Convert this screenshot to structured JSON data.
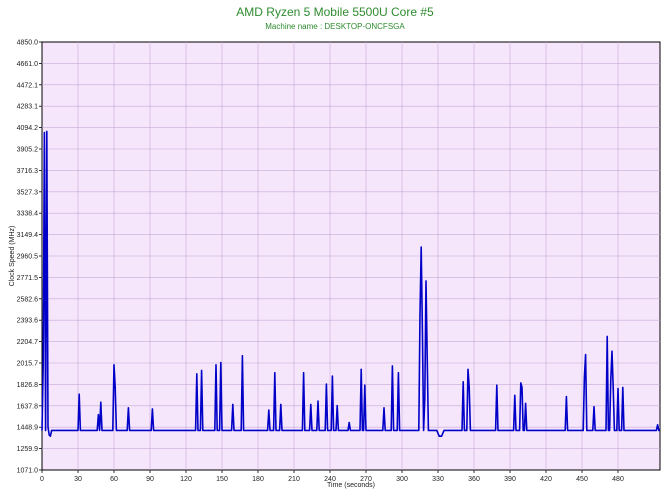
{
  "chart_data": {
    "type": "line",
    "title": "AMD Ryzen 5 Mobile 5500U Core #5",
    "subtitle": "Machine name : DESKTOP-ONCFSGA",
    "xlabel": "Time (seconds)",
    "ylabel": "Clock Speed (MHz)",
    "xlim": [
      0,
      515
    ],
    "ylim": [
      1071.0,
      4850.0
    ],
    "x_ticks": [
      "0",
      "30",
      "60",
      "90",
      "120",
      "150",
      "180",
      "210",
      "240",
      "270",
      "300",
      "330",
      "360",
      "390",
      "420",
      "450",
      "480"
    ],
    "y_ticks": [
      "1071.0",
      "1259.9",
      "1448.9",
      "1637.8",
      "1826.8",
      "2015.7",
      "2204.7",
      "2393.6",
      "2582.6",
      "2771.5",
      "2960.5",
      "3149.4",
      "3338.4",
      "3527.3",
      "3716.3",
      "3905.2",
      "4094.2",
      "4283.1",
      "4472.1",
      "4661.0",
      "4850.0"
    ],
    "grid": true,
    "background_color": "#f5e6fb",
    "grid_color": "#c8a8d8",
    "line_color": "#0000c8",
    "title_color": "#2e8b2e",
    "series": [
      {
        "values": [
          [
            0,
            1420
          ],
          [
            1,
            2000
          ],
          [
            2,
            4050
          ],
          [
            3,
            1420
          ],
          [
            4,
            4060
          ],
          [
            5,
            1450
          ],
          [
            6,
            1380
          ],
          [
            7,
            1370
          ],
          [
            8,
            1420
          ],
          [
            30,
            1420
          ],
          [
            31,
            1740
          ],
          [
            32,
            1420
          ],
          [
            46,
            1420
          ],
          [
            47,
            1560
          ],
          [
            48,
            1420
          ],
          [
            49,
            1670
          ],
          [
            50,
            1420
          ],
          [
            59,
            1420
          ],
          [
            60,
            2000
          ],
          [
            61,
            1800
          ],
          [
            62,
            1420
          ],
          [
            71,
            1420
          ],
          [
            72,
            1620
          ],
          [
            73,
            1420
          ],
          [
            91,
            1420
          ],
          [
            92,
            1610
          ],
          [
            93,
            1420
          ],
          [
            128,
            1420
          ],
          [
            129,
            1920
          ],
          [
            130,
            1420
          ],
          [
            132,
            1420
          ],
          [
            133,
            1950
          ],
          [
            134,
            1420
          ],
          [
            144,
            1420
          ],
          [
            145,
            2000
          ],
          [
            146,
            1420
          ],
          [
            148,
            1420
          ],
          [
            149,
            2020
          ],
          [
            150,
            1420
          ],
          [
            158,
            1420
          ],
          [
            159,
            1650
          ],
          [
            160,
            1420
          ],
          [
            166,
            1420
          ],
          [
            167,
            2080
          ],
          [
            168,
            1420
          ],
          [
            188,
            1420
          ],
          [
            189,
            1600
          ],
          [
            190,
            1420
          ],
          [
            193,
            1420
          ],
          [
            194,
            1930
          ],
          [
            195,
            1420
          ],
          [
            198,
            1420
          ],
          [
            199,
            1650
          ],
          [
            200,
            1420
          ],
          [
            217,
            1420
          ],
          [
            218,
            1930
          ],
          [
            219,
            1420
          ],
          [
            223,
            1420
          ],
          [
            224,
            1650
          ],
          [
            225,
            1420
          ],
          [
            229,
            1420
          ],
          [
            230,
            1680
          ],
          [
            231,
            1420
          ],
          [
            236,
            1420
          ],
          [
            237,
            1830
          ],
          [
            238,
            1420
          ],
          [
            241,
            1420
          ],
          [
            242,
            1900
          ],
          [
            243,
            1420
          ],
          [
            245,
            1420
          ],
          [
            246,
            1640
          ],
          [
            247,
            1420
          ],
          [
            255,
            1420
          ],
          [
            256,
            1490
          ],
          [
            257,
            1420
          ],
          [
            265,
            1420
          ],
          [
            266,
            1960
          ],
          [
            267,
            1420
          ],
          [
            268,
            1420
          ],
          [
            269,
            1820
          ],
          [
            270,
            1420
          ],
          [
            284,
            1420
          ],
          [
            285,
            1620
          ],
          [
            286,
            1420
          ],
          [
            291,
            1420
          ],
          [
            292,
            1990
          ],
          [
            293,
            1420
          ],
          [
            296,
            1420
          ],
          [
            297,
            1930
          ],
          [
            298,
            1420
          ],
          [
            314,
            1420
          ],
          [
            315,
            2450
          ],
          [
            316,
            3040
          ],
          [
            317,
            2300
          ],
          [
            318,
            1420
          ],
          [
            319,
            1700
          ],
          [
            320,
            2740
          ],
          [
            321,
            2070
          ],
          [
            322,
            1420
          ],
          [
            329,
            1420
          ],
          [
            331,
            1370
          ],
          [
            333,
            1370
          ],
          [
            335,
            1420
          ],
          [
            350,
            1420
          ],
          [
            351,
            1850
          ],
          [
            352,
            1420
          ],
          [
            354,
            1420
          ],
          [
            355,
            1960
          ],
          [
            356,
            1800
          ],
          [
            357,
            1420
          ],
          [
            378,
            1420
          ],
          [
            379,
            1820
          ],
          [
            380,
            1420
          ],
          [
            393,
            1420
          ],
          [
            394,
            1730
          ],
          [
            395,
            1420
          ],
          [
            398,
            1420
          ],
          [
            399,
            1840
          ],
          [
            400,
            1800
          ],
          [
            401,
            1420
          ],
          [
            402,
            1420
          ],
          [
            403,
            1660
          ],
          [
            404,
            1420
          ],
          [
            436,
            1420
          ],
          [
            437,
            1720
          ],
          [
            438,
            1420
          ],
          [
            451,
            1420
          ],
          [
            452,
            1890
          ],
          [
            453,
            2090
          ],
          [
            454,
            1420
          ],
          [
            459,
            1420
          ],
          [
            460,
            1630
          ],
          [
            461,
            1420
          ],
          [
            470,
            1420
          ],
          [
            471,
            2250
          ],
          [
            472,
            1420
          ],
          [
            473,
            1420
          ],
          [
            474,
            1870
          ],
          [
            475,
            2120
          ],
          [
            476,
            1800
          ],
          [
            477,
            1420
          ],
          [
            479,
            1420
          ],
          [
            480,
            1790
          ],
          [
            481,
            1420
          ],
          [
            483,
            1420
          ],
          [
            484,
            1800
          ],
          [
            485,
            1420
          ],
          [
            512,
            1420
          ],
          [
            513,
            1470
          ],
          [
            514,
            1420
          ],
          [
            515,
            1420
          ]
        ]
      }
    ]
  }
}
